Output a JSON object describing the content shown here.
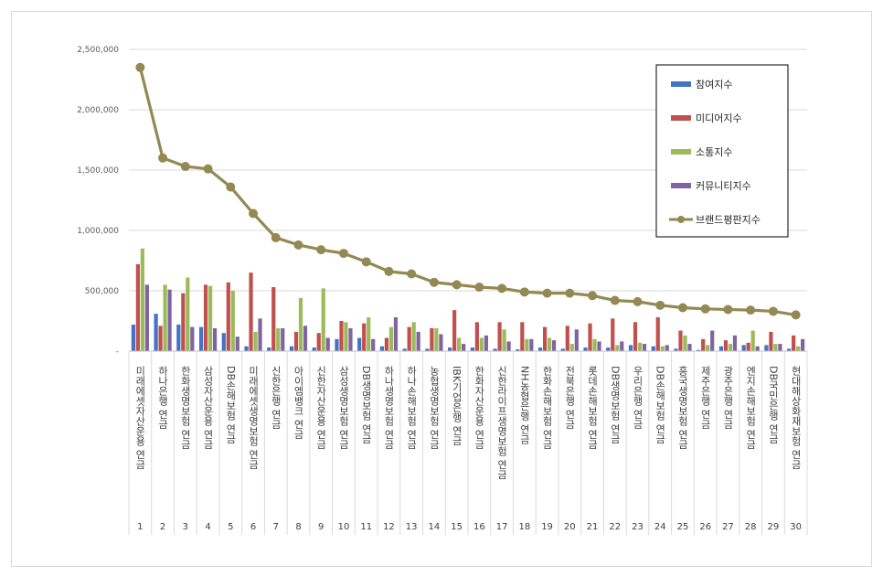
{
  "chart_data": {
    "type": "bar",
    "title": "",
    "xlabel": "",
    "ylabel": "",
    "ylim": [
      0,
      2500000
    ],
    "ytick_labels": [
      "-",
      "500,000",
      "1,000,000",
      "1,500,000",
      "2,000,000",
      "2,500,000"
    ],
    "yticks": [
      0,
      500000,
      1000000,
      1500000,
      2000000,
      2500000
    ],
    "grid": true,
    "legend_position": "top-right",
    "ranks": [
      "1",
      "2",
      "3",
      "4",
      "5",
      "6",
      "7",
      "8",
      "9",
      "10",
      "11",
      "12",
      "13",
      "14",
      "15",
      "16",
      "17",
      "18",
      "19",
      "20",
      "21",
      "22",
      "23",
      "24",
      "25",
      "26",
      "27",
      "28",
      "29",
      "30"
    ],
    "categories": [
      "미래에셋자산운용 연금",
      "하나은행 연금",
      "한화생명보험 연금",
      "삼성자산운용 연금",
      "DB손해보험 연금",
      "미래에셋생명보험 연금",
      "신한은행 연금",
      "아이엠뱅크 연금",
      "신한자산운용 연금",
      "삼성생명보험 연금",
      "DB생명보험 연금",
      "하나생명보험 연금",
      "하나손해보험 연금",
      "농협생명보험 연금",
      "IBK기업은행 연금",
      "한화자산운용 연금",
      "신한라이프생명보험 연금",
      "NH농협은행 연금",
      "한화손해보험 연금",
      "전북은행 연금",
      "롯데손해보험 연금",
      "DB생명보험 연금",
      "우리은행 연금",
      "DB손해보험 연금",
      "흥국생명보험 연금",
      "제주은행 연금",
      "광주은행 연금",
      "엔지손해보험 연금",
      "DB국민은행 연금",
      "현대해상화재보험 연금"
    ],
    "series": [
      {
        "name": "참여지수",
        "kind": "bar",
        "color": "#4472c4",
        "values": [
          220000,
          310000,
          220000,
          200000,
          150000,
          40000,
          30000,
          40000,
          30000,
          100000,
          110000,
          40000,
          20000,
          20000,
          30000,
          30000,
          20000,
          15000,
          30000,
          20000,
          30000,
          30000,
          50000,
          40000,
          20000,
          10000,
          40000,
          50000,
          50000,
          20000
        ]
      },
      {
        "name": "미디어지수",
        "kind": "bar",
        "color": "#c0504d",
        "values": [
          720000,
          210000,
          480000,
          550000,
          570000,
          650000,
          530000,
          160000,
          150000,
          250000,
          230000,
          110000,
          200000,
          190000,
          340000,
          240000,
          240000,
          240000,
          200000,
          210000,
          230000,
          270000,
          240000,
          280000,
          170000,
          100000,
          90000,
          70000,
          160000,
          130000
        ]
      },
      {
        "name": "소통지수",
        "kind": "bar",
        "color": "#9bbb59",
        "values": [
          850000,
          550000,
          610000,
          540000,
          500000,
          160000,
          190000,
          440000,
          520000,
          240000,
          280000,
          200000,
          240000,
          190000,
          110000,
          110000,
          180000,
          100000,
          110000,
          60000,
          100000,
          50000,
          70000,
          40000,
          130000,
          50000,
          60000,
          170000,
          60000,
          40000
        ]
      },
      {
        "name": "커뮤니티지수",
        "kind": "bar",
        "color": "#8064a2",
        "values": [
          550000,
          510000,
          200000,
          190000,
          120000,
          270000,
          190000,
          210000,
          110000,
          190000,
          100000,
          280000,
          160000,
          140000,
          60000,
          130000,
          80000,
          100000,
          90000,
          180000,
          80000,
          80000,
          60000,
          50000,
          60000,
          170000,
          130000,
          40000,
          60000,
          100000
        ]
      },
      {
        "name": "브랜드평판지수",
        "kind": "line",
        "color": "#938953",
        "values": [
          2350000,
          1600000,
          1530000,
          1510000,
          1360000,
          1140000,
          940000,
          880000,
          840000,
          810000,
          740000,
          660000,
          640000,
          570000,
          550000,
          530000,
          520000,
          490000,
          480000,
          480000,
          460000,
          420000,
          410000,
          380000,
          360000,
          350000,
          345000,
          340000,
          330000,
          300000
        ]
      }
    ]
  }
}
